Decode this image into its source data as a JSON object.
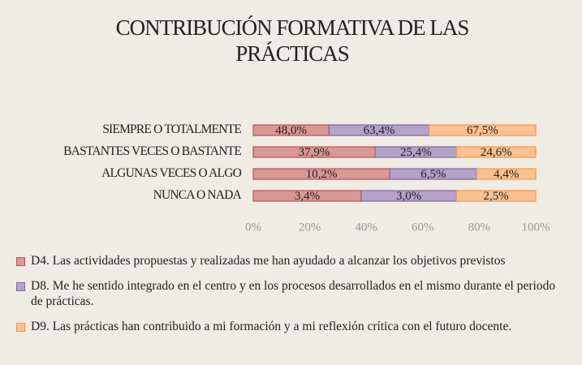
{
  "chart_data": {
    "type": "bar",
    "orientation": "horizontal",
    "stacked": "percent",
    "title": "CONTRIBUCIÓN FORMATIVA DE LAS PRÁCTICAS",
    "categories": [
      "SIEMPRE O TOTALMENTE",
      "BASTANTES VECES O BASTANTE",
      "ALGUNAS VECES O ALGO",
      "NUNCA O NADA"
    ],
    "series": [
      {
        "name": "D4.  Las actividades propuestas y realizadas me han ayudado a alcanzar los objetivos previstos",
        "color": "#d99795",
        "border": "#c0504d",
        "values": [
          48.0,
          37.9,
          10.2,
          3.4
        ],
        "value_labels": [
          "48,0%",
          "37,9%",
          "10,2%",
          "3,4%"
        ]
      },
      {
        "name": "D8. Me he sentido integrado en el centro y en los procesos desarrollados en el mismo durante el periodo de prácticas.",
        "color": "#b3a2c8",
        "border": "#8064a2",
        "values": [
          63.4,
          25.4,
          6.5,
          3.0
        ],
        "value_labels": [
          "63,4%",
          "25,4%",
          "6,5%",
          "3,0%"
        ]
      },
      {
        "name": "D9. Las prácticas han contribuido a mi formación y a mi reflexión crítica con el futuro docente.",
        "color": "#fac191",
        "border": "#f79646",
        "values": [
          67.5,
          24.6,
          4.4,
          2.5
        ],
        "value_labels": [
          "67,5%",
          "24,6%",
          "4,4%",
          "2,5%"
        ]
      }
    ],
    "xlim": [
      0,
      100
    ],
    "xticks": [
      {
        "value": 0,
        "label": "0%"
      },
      {
        "value": 20,
        "label": "20%"
      },
      {
        "value": 40,
        "label": "40%"
      },
      {
        "value": 60,
        "label": "60%"
      },
      {
        "value": 80,
        "label": "80%"
      },
      {
        "value": 100,
        "label": "100%"
      }
    ],
    "legend": "bottom"
  }
}
